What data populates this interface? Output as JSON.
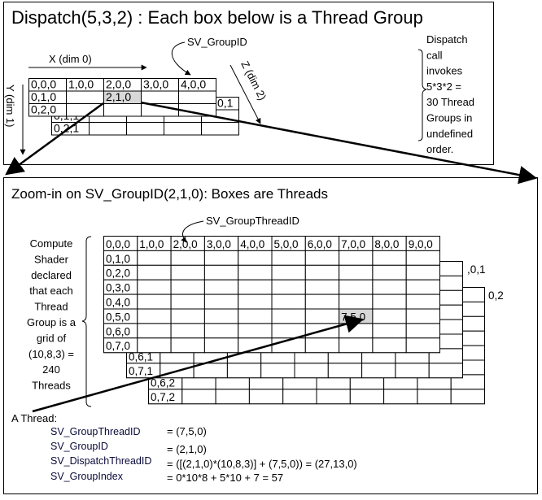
{
  "dispatch": {
    "title": "Dispatch(5,3,2) : Each box below is a Thread Group",
    "x_axis": "X (dim 0)",
    "y_axis": "Y (dim 1)",
    "z_axis": "Z (dim 2)",
    "callout": "SV_GroupID",
    "note_lines": [
      "Dispatch",
      "call",
      "invokes",
      "5*3*2 =",
      "30 Thread",
      "Groups in",
      "undefined",
      "order."
    ],
    "front_row0": [
      "0,0,0",
      "1,0,0",
      "2,0,0",
      "3,0,0",
      "4,0,0"
    ],
    "front_col0": [
      "0,0,0",
      "0,1,0",
      "0,2,0"
    ],
    "highlight": "2,1,0",
    "back_labels": [
      "0,1,1",
      "0,2,1"
    ],
    "back_corner": "0,1"
  },
  "zoom": {
    "title": "Zoom-in on SV_GroupID(2,1,0): Boxes are Threads",
    "callout": "SV_GroupThreadID",
    "note_lines": [
      "Compute",
      "Shader",
      "declared",
      "that each",
      "Thread",
      "Group is a",
      "grid of",
      "(10,8,3) =",
      "240",
      "Threads"
    ],
    "front_row0": [
      "0,0,0",
      "1,0,0",
      "2,0,0",
      "3,0,0",
      "4,0,0",
      "5,0,0",
      "6,0,0",
      "7,0,0",
      "8,0,0",
      "9,0,0"
    ],
    "front_col0": [
      "0,0,0",
      "0,1,0",
      "0,2,0",
      "0,3,0",
      "0,4,0",
      "0,5,0",
      "0,6,0",
      "0,7,0"
    ],
    "highlight": "7,5,0",
    "layer1_labels": [
      "0,6,1",
      "0,7,1"
    ],
    "layer1_corner": ",0,1",
    "layer2_labels": [
      "0,6,2",
      "0,7,2"
    ],
    "layer2_corner": "0,2"
  },
  "thread": {
    "heading": "A Thread:",
    "rows": [
      {
        "name": "SV_GroupThreadID",
        "value": "= (7,5,0)"
      },
      {
        "name": "SV_GroupID",
        "value": "= (2,1,0)"
      },
      {
        "name": "SV_DispatchThreadID",
        "value": "=  ([(2,1,0)*(10,8,3)] + (7,5,0)) = (27,13,0)"
      },
      {
        "name": "SV_GroupIndex",
        "value": "=   0*10*8 + 5*10 + 7 = 57"
      }
    ]
  },
  "colors": {
    "highlight": "#d8d8d8",
    "label_text": "#0a0a3a"
  }
}
